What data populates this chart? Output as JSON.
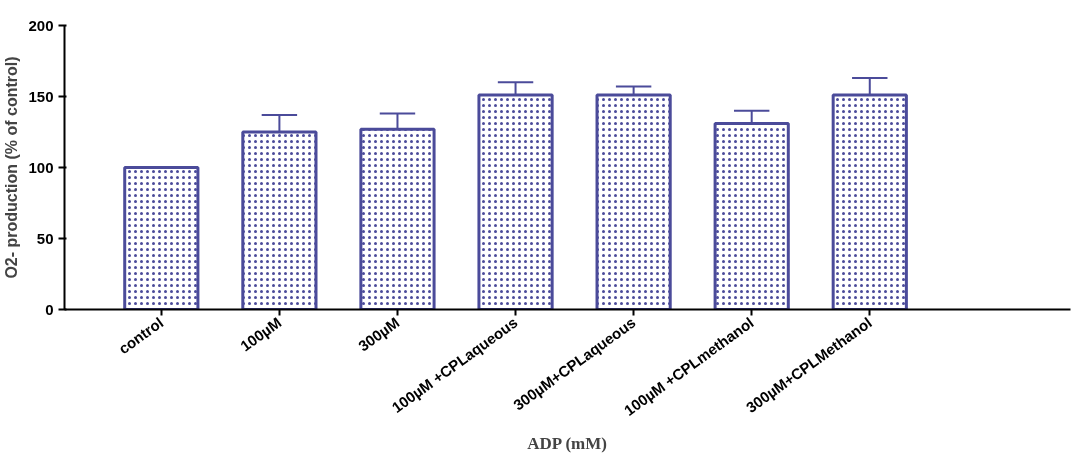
{
  "chart_data": {
    "type": "bar",
    "xlabel": "ADP (mM)",
    "ylabel": "O2- production (% of control)",
    "categories": [
      "control",
      "100µM",
      "300µM",
      "100µM +CPLaqueous",
      "300µM+CPLaqueous",
      "100µM +CPLmethanol",
      "300µM+CPLMethanol"
    ],
    "values": [
      100,
      125,
      127,
      151,
      151,
      131,
      151
    ],
    "errors": [
      null,
      [
        125,
        137
      ],
      [
        127,
        138
      ],
      [
        151,
        160
      ],
      [
        151,
        157
      ],
      [
        131,
        140
      ],
      [
        151,
        163
      ]
    ],
    "color": "#4b4b9a",
    "ylim": [
      0,
      200
    ],
    "yticks": [
      0,
      50,
      100,
      150,
      200
    ],
    "grid": false
  }
}
